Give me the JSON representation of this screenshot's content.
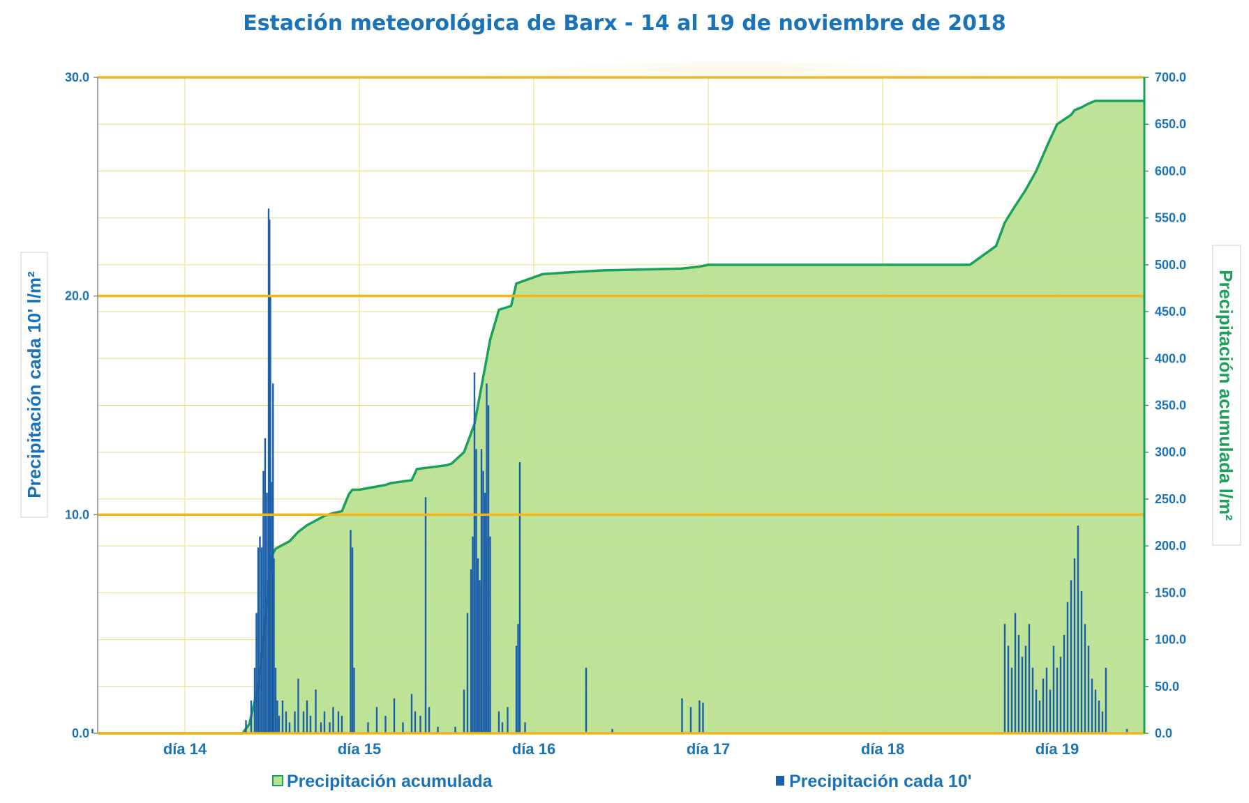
{
  "chart_data": {
    "type": "bar",
    "title": "Estación meteorológica de Barx - 14 al 19 de noviembre de 2018",
    "x_tick_labels": [
      "día 14",
      "día 15",
      "día 16",
      "día 17",
      "día 18",
      "día 19"
    ],
    "y_left": {
      "label": "Precipitación cada 10' l/m²",
      "range": [
        0,
        30
      ],
      "ticks": [
        "0.0",
        "10.0",
        "20.0",
        "30.0"
      ]
    },
    "y_right": {
      "label": "Precipitación acumulada l/m²",
      "range": [
        0,
        700
      ],
      "ticks": [
        "0.0",
        "50.0",
        "100.0",
        "150.0",
        "200.0",
        "250.0",
        "300.0",
        "350.0",
        "400.0",
        "450.0",
        "500.0",
        "550.0",
        "600.0",
        "650.0",
        "700.0"
      ]
    },
    "grid": true,
    "legend_position": "bottom",
    "legend": [
      "Precipitación acumulada",
      "Precipitación cada 10'"
    ],
    "series": [
      {
        "name": "Precipitación acumulada",
        "type": "area",
        "axis": "right",
        "color": "#1aa05a",
        "fill": "#b9e08f",
        "x": [
          13.5,
          14.33,
          14.37,
          14.42,
          14.45,
          14.48,
          14.5,
          14.52,
          14.55,
          14.6,
          14.65,
          14.7,
          14.75,
          14.8,
          14.85,
          14.9,
          14.94,
          14.96,
          15.0,
          15.15,
          15.18,
          15.3,
          15.33,
          15.5,
          15.53,
          15.6,
          15.66,
          15.7,
          15.75,
          15.8,
          15.87,
          15.9,
          16.05,
          16.3,
          16.4,
          16.85,
          16.95,
          17.0,
          18.5,
          18.65,
          18.7,
          18.75,
          18.82,
          18.88,
          18.95,
          19.0,
          19.08,
          19.1,
          19.14,
          19.18,
          19.22,
          19.28,
          19.5
        ],
        "y": [
          0,
          0,
          10,
          50,
          100,
          160,
          190,
          197,
          200,
          205,
          215,
          222,
          227,
          232,
          235,
          237,
          255,
          260,
          260,
          265,
          267,
          270,
          282,
          286,
          288,
          300,
          330,
          370,
          420,
          452,
          456,
          480,
          490,
          493,
          494,
          496,
          498,
          500,
          500,
          520,
          545,
          560,
          580,
          600,
          630,
          650,
          660,
          665,
          668,
          672,
          675,
          675,
          675
        ]
      },
      {
        "name": "Precipitación cada 10'",
        "type": "bar",
        "axis": "left",
        "color": "#1a5fa8",
        "x": [
          13.47,
          14.35,
          14.38,
          14.4,
          14.41,
          14.42,
          14.43,
          14.44,
          14.45,
          14.46,
          14.47,
          14.48,
          14.485,
          14.49,
          14.5,
          14.505,
          14.51,
          14.52,
          14.53,
          14.54,
          14.56,
          14.58,
          14.6,
          14.63,
          14.65,
          14.68,
          14.7,
          14.72,
          14.75,
          14.78,
          14.8,
          14.83,
          14.85,
          14.88,
          14.9,
          14.95,
          14.96,
          14.97,
          15.05,
          15.1,
          15.15,
          15.2,
          15.25,
          15.3,
          15.32,
          15.35,
          15.38,
          15.4,
          15.45,
          15.55,
          15.6,
          15.62,
          15.64,
          15.65,
          15.66,
          15.67,
          15.68,
          15.69,
          15.7,
          15.71,
          15.72,
          15.73,
          15.74,
          15.75,
          15.8,
          15.82,
          15.85,
          15.9,
          15.91,
          15.92,
          15.95,
          16.3,
          16.45,
          16.85,
          16.9,
          16.95,
          16.97,
          18.7,
          18.72,
          18.74,
          18.76,
          18.78,
          18.8,
          18.82,
          18.84,
          18.86,
          18.88,
          18.9,
          18.92,
          18.94,
          18.96,
          18.98,
          19.0,
          19.02,
          19.04,
          19.06,
          19.08,
          19.1,
          19.12,
          19.14,
          19.16,
          19.18,
          19.2,
          19.22,
          19.24,
          19.26,
          19.28,
          19.4
        ],
        "values": [
          0.2,
          0.6,
          1.5,
          3.0,
          5.5,
          8.5,
          9.0,
          8.5,
          12.0,
          13.5,
          11.0,
          24.0,
          23.5,
          20.0,
          11.5,
          16.0,
          8.0,
          3.0,
          1.5,
          0.8,
          1.5,
          1.0,
          0.5,
          1.0,
          2.5,
          1.0,
          1.5,
          0.8,
          2.0,
          0.5,
          1.0,
          0.5,
          1.2,
          1.0,
          0.8,
          9.3,
          8.5,
          3.0,
          0.5,
          1.2,
          0.8,
          1.6,
          0.5,
          1.8,
          1.0,
          0.8,
          10.8,
          1.2,
          0.3,
          0.3,
          2.0,
          5.5,
          7.5,
          9.0,
          16.5,
          13.0,
          8.0,
          7.0,
          13.0,
          12.0,
          11.0,
          16.0,
          15.0,
          9.0,
          1.0,
          0.5,
          1.2,
          4.0,
          5.0,
          12.4,
          0.5,
          3.0,
          0.2,
          1.6,
          1.2,
          1.5,
          1.4,
          5.0,
          4.0,
          3.0,
          5.5,
          4.5,
          3.5,
          4.0,
          5.0,
          3.0,
          2.0,
          1.5,
          2.5,
          3.0,
          2.0,
          4.0,
          3.0,
          3.5,
          4.5,
          6.0,
          7.0,
          8.0,
          9.5,
          6.5,
          5.0,
          4.0,
          2.5,
          2.0,
          1.5,
          1.0,
          3.0,
          0.2
        ]
      }
    ],
    "x_range": [
      13.5,
      19.5
    ]
  }
}
